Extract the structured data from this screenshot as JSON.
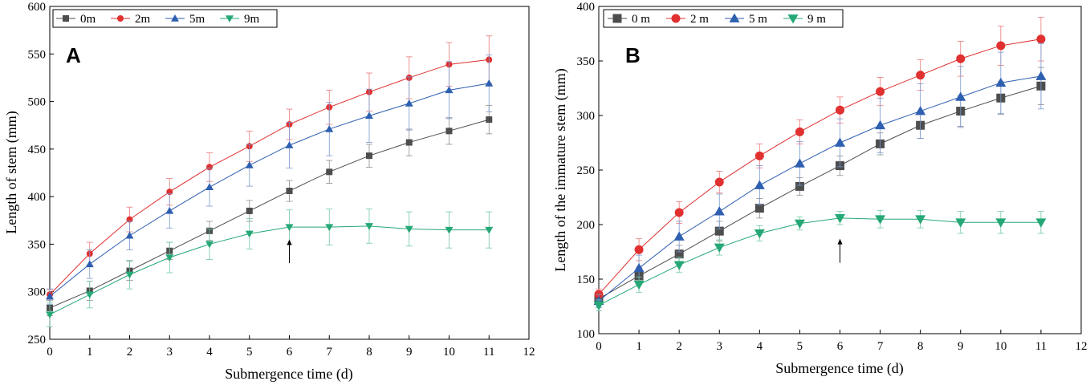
{
  "chart_data": [
    {
      "type": "line",
      "panel_label": "A",
      "xlabel": "Submergence time (d)",
      "ylabel": "Length of  stem (mm)",
      "xlim": [
        0,
        12
      ],
      "ylim": [
        250,
        600
      ],
      "xticks": [
        0,
        1,
        2,
        3,
        4,
        5,
        6,
        7,
        8,
        9,
        10,
        11,
        12
      ],
      "yticks": [
        250,
        300,
        350,
        400,
        450,
        500,
        550,
        600
      ],
      "x": [
        0,
        1,
        2,
        3,
        4,
        5,
        6,
        7,
        8,
        9,
        10,
        11
      ],
      "legend_position": "top-left",
      "arrow": {
        "x": 6,
        "y_from": 330,
        "y_to": 355
      },
      "series": [
        {
          "name": "0m",
          "color": "#4d4d4d",
          "marker": "square",
          "values": [
            283,
            301,
            322,
            343,
            364,
            385,
            406,
            426,
            443,
            457,
            469,
            481
          ],
          "errors": [
            8,
            10,
            10,
            9,
            10,
            11,
            11,
            12,
            12,
            14,
            14,
            15
          ]
        },
        {
          "name": "2m",
          "color": "#e03030",
          "marker": "circle",
          "values": [
            297,
            340,
            376,
            405,
            431,
            453,
            476,
            494,
            510,
            525,
            539,
            544
          ],
          "errors": [
            5,
            12,
            13,
            14,
            15,
            16,
            16,
            18,
            20,
            22,
            23,
            25
          ]
        },
        {
          "name": "5m",
          "color": "#2e5fb0",
          "marker": "triangle-up",
          "values": [
            295,
            329,
            359,
            385,
            410,
            433,
            454,
            471,
            485,
            498,
            512,
            519
          ],
          "errors": [
            8,
            15,
            15,
            18,
            20,
            22,
            24,
            28,
            28,
            28,
            30,
            30
          ]
        },
        {
          "name": "9m",
          "color": "#26a876",
          "marker": "triangle-down",
          "values": [
            276,
            297,
            318,
            336,
            350,
            361,
            368,
            368,
            369,
            366,
            365,
            365
          ],
          "errors": [
            13,
            14,
            15,
            16,
            16,
            16,
            18,
            19,
            18,
            18,
            19,
            19
          ]
        }
      ]
    },
    {
      "type": "line",
      "panel_label": "B",
      "xlabel": "Submergence time (d)",
      "ylabel": "Length of the immature stem (mm)",
      "xlim": [
        0,
        12
      ],
      "ylim": [
        100,
        400
      ],
      "xticks": [
        0,
        1,
        2,
        3,
        4,
        5,
        6,
        7,
        8,
        9,
        10,
        11,
        12
      ],
      "yticks": [
        100,
        150,
        200,
        250,
        300,
        350,
        400
      ],
      "x": [
        0,
        1,
        2,
        3,
        4,
        5,
        6,
        7,
        8,
        9,
        10,
        11
      ],
      "legend_position": "top-left",
      "arrow": {
        "x": 6,
        "y_from": 165,
        "y_to": 187
      },
      "series": [
        {
          "name": "0 m",
          "color": "#4d4d4d",
          "marker": "square",
          "values": [
            132,
            153,
            173,
            194,
            215,
            235,
            254,
            274,
            291,
            304,
            316,
            327
          ],
          "errors": [
            5,
            8,
            8,
            9,
            9,
            8,
            9,
            10,
            12,
            14,
            15,
            17
          ]
        },
        {
          "name": "2 m",
          "color": "#e03030",
          "marker": "circle",
          "values": [
            136,
            177,
            211,
            239,
            263,
            285,
            305,
            322,
            337,
            352,
            364,
            370
          ],
          "errors": [
            5,
            10,
            10,
            10,
            11,
            11,
            12,
            13,
            14,
            16,
            18,
            20
          ]
        },
        {
          "name": "5 m",
          "color": "#2e5fb0",
          "marker": "triangle-up",
          "values": [
            130,
            160,
            189,
            212,
            236,
            256,
            275,
            291,
            304,
            317,
            330,
            336
          ],
          "errors": [
            6,
            12,
            14,
            16,
            18,
            20,
            22,
            25,
            25,
            28,
            28,
            30
          ]
        },
        {
          "name": "9 m",
          "color": "#26a876",
          "marker": "triangle-down",
          "values": [
            126,
            145,
            163,
            179,
            192,
            201,
            206,
            205,
            205,
            202,
            202,
            202
          ],
          "errors": [
            5,
            7,
            7,
            7,
            7,
            6,
            6,
            8,
            8,
            10,
            10,
            10
          ]
        }
      ]
    }
  ]
}
